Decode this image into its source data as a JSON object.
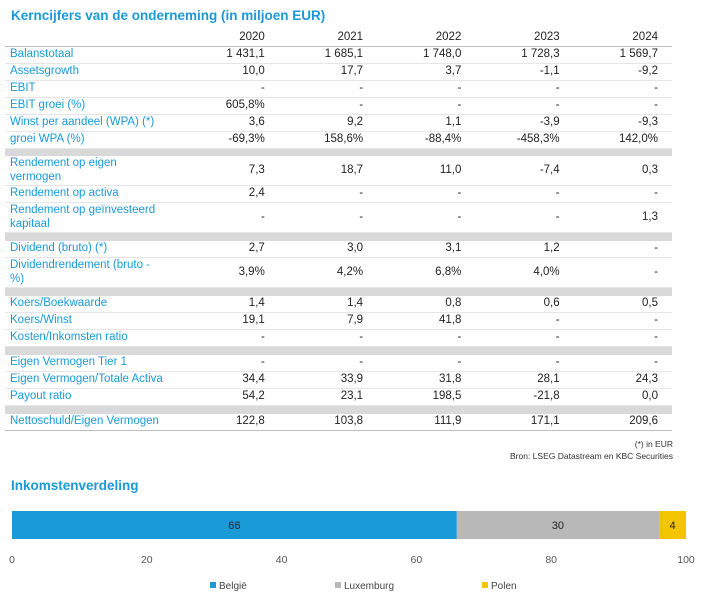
{
  "title": "Kerncijfers van de onderneming (in miljoen EUR)",
  "columns": [
    "2020",
    "2021",
    "2022",
    "2023",
    "2024"
  ],
  "groups": [
    [
      {
        "label": [
          "Balanstotaal"
        ],
        "values": [
          "1 431,1",
          "1 685,1",
          "1 748,0",
          "1 728,3",
          "1 569,7"
        ]
      },
      {
        "label": [
          "Assetsgrowth"
        ],
        "values": [
          "10,0",
          "17,7",
          "3,7",
          "-1,1",
          "-9,2"
        ]
      },
      {
        "label": [
          "EBIT"
        ],
        "values": [
          "-",
          "-",
          "-",
          "-",
          "-"
        ]
      },
      {
        "label": [
          "EBIT groei (%)"
        ],
        "values": [
          "605,8%",
          "-",
          "-",
          "-",
          "-"
        ]
      },
      {
        "label": [
          "Winst per aandeel (WPA) (*)"
        ],
        "values": [
          "3,6",
          "9,2",
          "1,1",
          "-3,9",
          "-9,3"
        ]
      },
      {
        "label": [
          "groei WPA (%)"
        ],
        "values": [
          "-69,3%",
          "158,6%",
          "-88,4%",
          "-458,3%",
          "142,0%"
        ]
      }
    ],
    [
      {
        "label": [
          "Rendement op eigen",
          "vermogen"
        ],
        "values": [
          "7,3",
          "18,7",
          "11,0",
          "-7,4",
          "0,3"
        ]
      },
      {
        "label": [
          "Rendement op activa"
        ],
        "values": [
          "2,4",
          "-",
          "-",
          "-",
          "-"
        ]
      },
      {
        "label": [
          "Rendement op geïnvesteerd",
          "kapitaal"
        ],
        "values": [
          "-",
          "-",
          "-",
          "-",
          "1,3"
        ]
      }
    ],
    [
      {
        "label": [
          "Dividend (bruto) (*)"
        ],
        "values": [
          "2,7",
          "3,0",
          "3,1",
          "1,2",
          "-"
        ]
      },
      {
        "label": [
          "Dividendrendement (bruto -",
          "%)"
        ],
        "values": [
          "3,9%",
          "4,2%",
          "6,8%",
          "4,0%",
          "-"
        ]
      }
    ],
    [
      {
        "label": [
          "Koers/Boekwaarde"
        ],
        "values": [
          "1,4",
          "1,4",
          "0,8",
          "0,6",
          "0,5"
        ]
      },
      {
        "label": [
          "Koers/Winst"
        ],
        "values": [
          "19,1",
          "7,9",
          "41,8",
          "-",
          "-"
        ]
      },
      {
        "label": [
          "Kosten/Inkomsten ratio"
        ],
        "values": [
          "-",
          "-",
          "-",
          "-",
          "-"
        ]
      }
    ],
    [
      {
        "label": [
          "Eigen Vermogen Tier 1"
        ],
        "values": [
          "-",
          "-",
          "-",
          "-",
          "-"
        ]
      },
      {
        "label": [
          "Eigen Vermogen/Totale Activa"
        ],
        "values": [
          "34,4",
          "33,9",
          "31,8",
          "28,1",
          "24,3"
        ]
      },
      {
        "label": [
          "Payout ratio"
        ],
        "values": [
          "54,2",
          "23,1",
          "198,5",
          "-21,8",
          "0,0"
        ]
      }
    ],
    [
      {
        "label": [
          "Nettoschuld/Eigen Vermogen"
        ],
        "values": [
          "122,8",
          "103,8",
          "111,9",
          "171,1",
          "209,6"
        ]
      }
    ]
  ],
  "footnote": "(*) in EUR",
  "source": "Bron: LSEG Datastream en KBC Securities",
  "chart_title": "Inkomstenverdeling",
  "chart_data": {
    "type": "bar",
    "orientation": "horizontal-stacked",
    "categories": [
      ""
    ],
    "series": [
      {
        "name": "België",
        "values": [
          66
        ],
        "color": "#1a9ad6"
      },
      {
        "name": "Luxemburg",
        "values": [
          30
        ],
        "color": "#b8b8b8"
      },
      {
        "name": "Polen",
        "values": [
          4
        ],
        "color": "#f2c500"
      }
    ],
    "xlim": [
      0,
      100
    ],
    "xticks": [
      "0",
      "20",
      "40",
      "60",
      "80",
      "100"
    ],
    "legend": "bottom",
    "grid": false
  }
}
